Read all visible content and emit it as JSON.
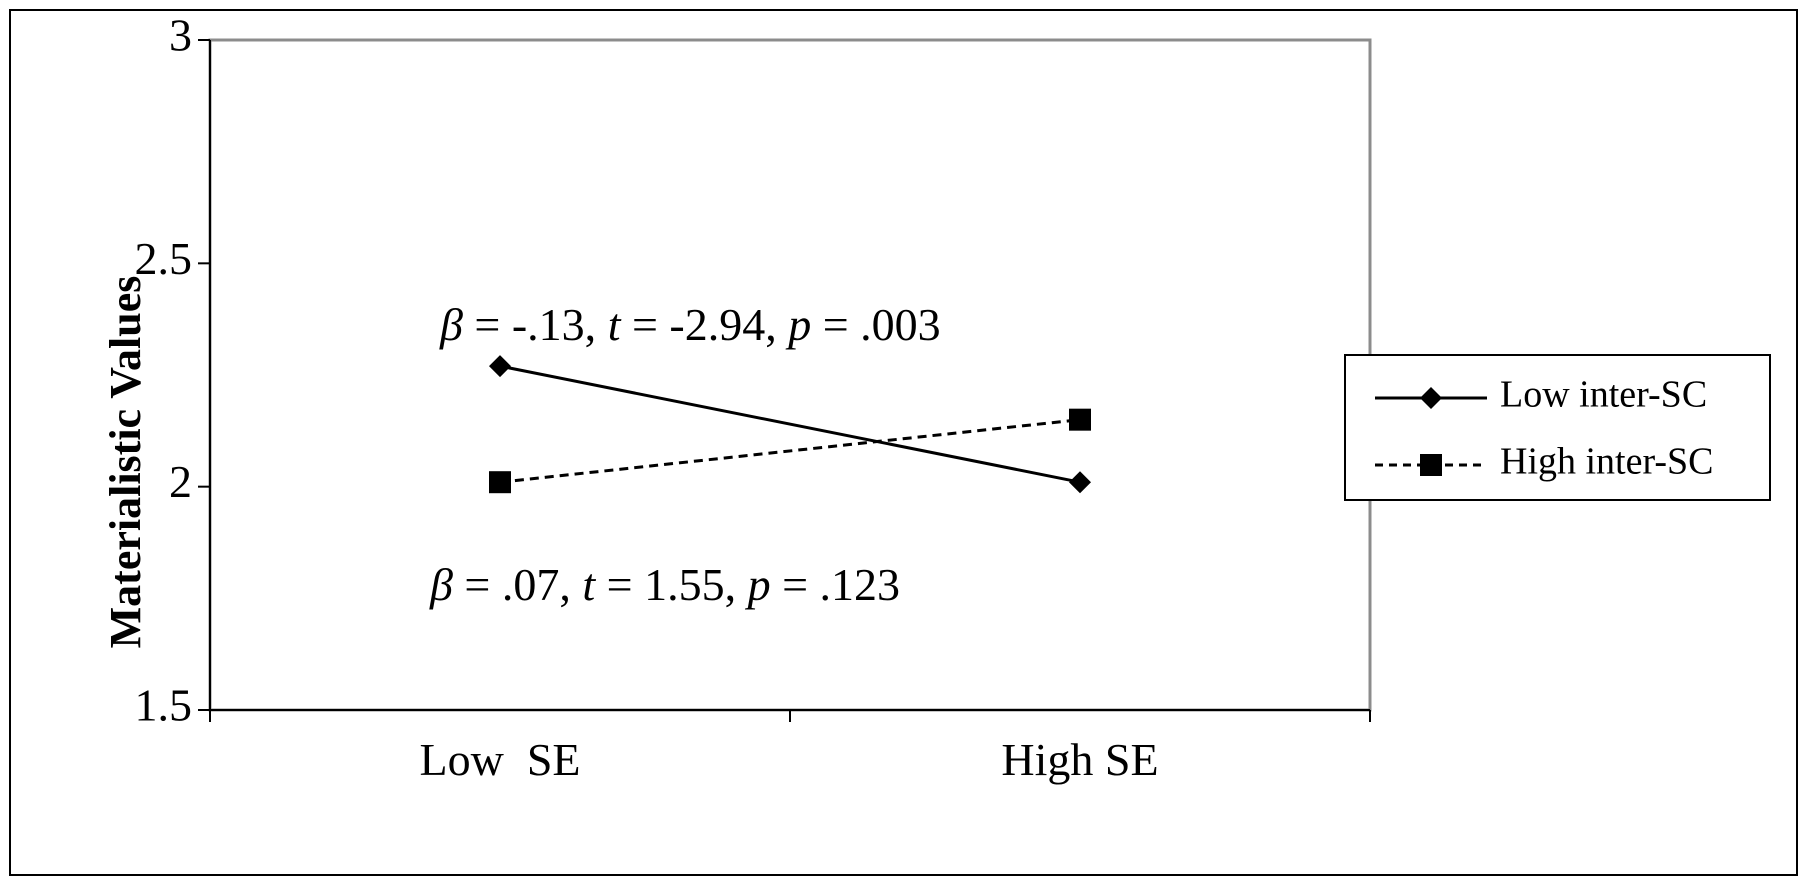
{
  "chart_data": {
    "type": "line",
    "title": "",
    "xlabel": "",
    "ylabel": "Materialistic Values",
    "categories": [
      "Low  SE",
      "High SE"
    ],
    "ylim": [
      1.5,
      3
    ],
    "yticks": [
      1.5,
      2,
      2.5,
      3
    ],
    "ytick_labels": [
      "1.5",
      "2",
      "2.5",
      "3"
    ],
    "grid": false,
    "legend_position": "right",
    "series": [
      {
        "name": "Low inter-SC",
        "values": [
          2.27,
          2.01
        ],
        "line_style": "solid",
        "marker": "diamond",
        "color": "#000000"
      },
      {
        "name": "High inter-SC",
        "values": [
          2.01,
          2.15
        ],
        "line_style": "dashed",
        "marker": "square",
        "color": "#000000"
      }
    ],
    "annotations": [
      {
        "id": "upper",
        "text": "β = -.13, t = -2.94, p = .003",
        "parts": [
          {
            "t": "β",
            "italic": true
          },
          {
            "t": " = -.13, ",
            "italic": false
          },
          {
            "t": "t",
            "italic": true
          },
          {
            "t": " = -2.94, ",
            "italic": false
          },
          {
            "t": "p",
            "italic": true
          },
          {
            "t": " = .003",
            "italic": false
          }
        ]
      },
      {
        "id": "lower",
        "text": "β = .07, t = 1.55, p = .123",
        "parts": [
          {
            "t": "β",
            "italic": true
          },
          {
            "t": " = .07, ",
            "italic": false
          },
          {
            "t": "t",
            "italic": true
          },
          {
            "t": " = 1.55, ",
            "italic": false
          },
          {
            "t": "p",
            "italic": true
          },
          {
            "t": " = .123",
            "italic": false
          }
        ]
      }
    ],
    "colors": {
      "plot_border": "#8c8c8c",
      "outer_border": "#000000",
      "axis": "#000000",
      "series": "#000000"
    }
  }
}
